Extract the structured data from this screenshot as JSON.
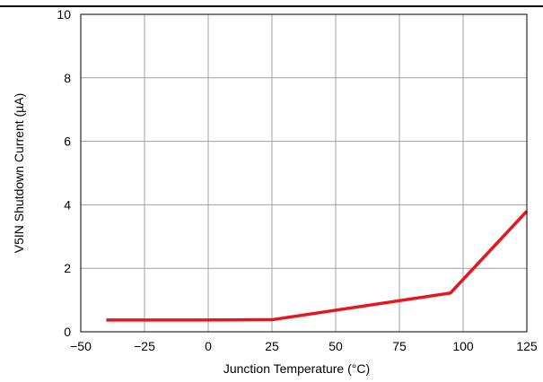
{
  "chart_data": {
    "type": "line",
    "title": "",
    "xlabel": "Junction Temperature (°C)",
    "ylabel": "V5IN Shutdown Current (µA)",
    "xlim": [
      -50,
      125
    ],
    "ylim": [
      0,
      10
    ],
    "x_ticks": [
      -50,
      -25,
      0,
      25,
      50,
      75,
      100,
      125
    ],
    "x_tick_labels": [
      "−50",
      "−25",
      "0",
      "25",
      "50",
      "75",
      "100",
      "125"
    ],
    "y_ticks": [
      0,
      2,
      4,
      6,
      8,
      10
    ],
    "y_tick_labels": [
      "0",
      "2",
      "4",
      "6",
      "8",
      "10"
    ],
    "grid": true,
    "legend": "none",
    "series": [
      {
        "color": "#e8141e",
        "x": [
          -40,
          -5,
          25,
          95,
          125
        ],
        "y": [
          0.37,
          0.37,
          0.38,
          1.22,
          3.8
        ]
      }
    ]
  }
}
